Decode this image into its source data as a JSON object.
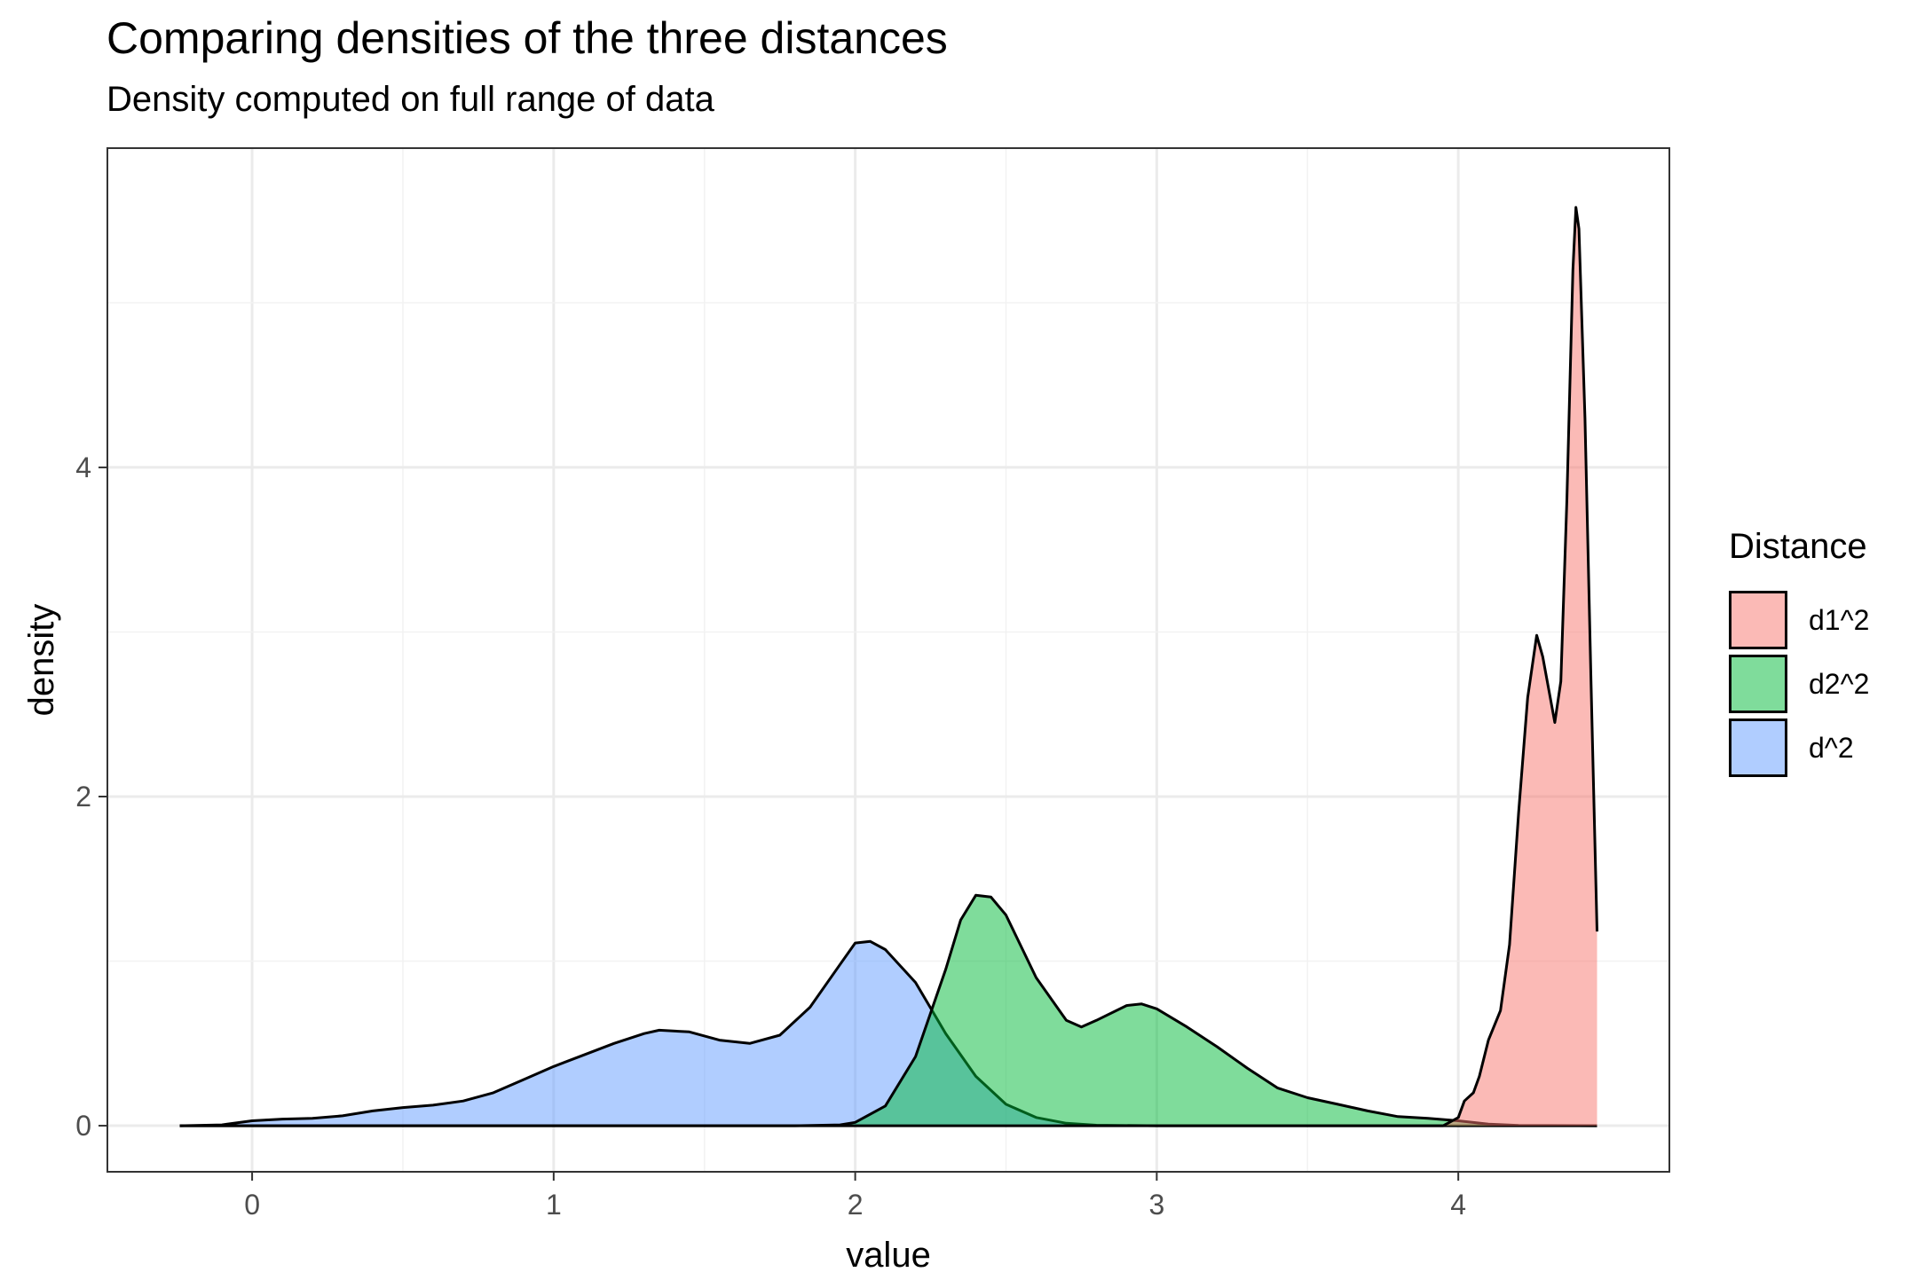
{
  "chart_data": {
    "type": "area",
    "title": "Comparing densities of the three distances",
    "subtitle": "Density computed on full range of data",
    "xlabel": "value",
    "ylabel": "density",
    "xlim": [
      -0.48,
      4.7
    ],
    "ylim": [
      -0.28,
      5.94
    ],
    "x_ticks": [
      0,
      1,
      2,
      3,
      4
    ],
    "y_ticks": [
      0,
      2,
      4
    ],
    "grid": true,
    "legend": {
      "title": "Distance",
      "position": "right"
    },
    "series": [
      {
        "name": "d^2",
        "color": "#619CFF",
        "points": [
          [
            -0.24,
            0
          ],
          [
            -0.1,
            0.005
          ],
          [
            0,
            0.03
          ],
          [
            0.1,
            0.04
          ],
          [
            0.2,
            0.045
          ],
          [
            0.3,
            0.06
          ],
          [
            0.4,
            0.09
          ],
          [
            0.5,
            0.11
          ],
          [
            0.6,
            0.125
          ],
          [
            0.7,
            0.15
          ],
          [
            0.8,
            0.2
          ],
          [
            0.9,
            0.28
          ],
          [
            1.0,
            0.36
          ],
          [
            1.1,
            0.43
          ],
          [
            1.2,
            0.5
          ],
          [
            1.3,
            0.56
          ],
          [
            1.35,
            0.58
          ],
          [
            1.45,
            0.57
          ],
          [
            1.55,
            0.52
          ],
          [
            1.65,
            0.5
          ],
          [
            1.75,
            0.55
          ],
          [
            1.85,
            0.72
          ],
          [
            1.95,
            0.98
          ],
          [
            2.0,
            1.11
          ],
          [
            2.05,
            1.12
          ],
          [
            2.1,
            1.07
          ],
          [
            2.2,
            0.87
          ],
          [
            2.3,
            0.56
          ],
          [
            2.4,
            0.3
          ],
          [
            2.5,
            0.13
          ],
          [
            2.6,
            0.05
          ],
          [
            2.7,
            0.015
          ],
          [
            2.8,
            0.003
          ],
          [
            3.0,
            0
          ],
          [
            4.46,
            0
          ]
        ]
      },
      {
        "name": "d2^2",
        "color": "#00BA38",
        "points": [
          [
            -0.24,
            0
          ],
          [
            1.8,
            0
          ],
          [
            1.95,
            0.005
          ],
          [
            2.0,
            0.02
          ],
          [
            2.1,
            0.12
          ],
          [
            2.2,
            0.42
          ],
          [
            2.3,
            0.95
          ],
          [
            2.35,
            1.25
          ],
          [
            2.4,
            1.4
          ],
          [
            2.45,
            1.39
          ],
          [
            2.5,
            1.28
          ],
          [
            2.6,
            0.9
          ],
          [
            2.7,
            0.64
          ],
          [
            2.75,
            0.6
          ],
          [
            2.8,
            0.64
          ],
          [
            2.9,
            0.73
          ],
          [
            2.95,
            0.74
          ],
          [
            3.0,
            0.71
          ],
          [
            3.1,
            0.6
          ],
          [
            3.2,
            0.48
          ],
          [
            3.3,
            0.35
          ],
          [
            3.4,
            0.23
          ],
          [
            3.5,
            0.17
          ],
          [
            3.6,
            0.13
          ],
          [
            3.7,
            0.09
          ],
          [
            3.8,
            0.055
          ],
          [
            3.9,
            0.045
          ],
          [
            4.0,
            0.03
          ],
          [
            4.1,
            0.01
          ],
          [
            4.2,
            0.002
          ],
          [
            4.46,
            0
          ]
        ]
      },
      {
        "name": "d1^2",
        "color": "#F8766D",
        "points": [
          [
            -0.24,
            0
          ],
          [
            3.95,
            0
          ],
          [
            4.0,
            0.05
          ],
          [
            4.02,
            0.15
          ],
          [
            4.05,
            0.2
          ],
          [
            4.07,
            0.3
          ],
          [
            4.1,
            0.52
          ],
          [
            4.14,
            0.7
          ],
          [
            4.17,
            1.1
          ],
          [
            4.2,
            1.9
          ],
          [
            4.23,
            2.6
          ],
          [
            4.26,
            2.98
          ],
          [
            4.28,
            2.85
          ],
          [
            4.3,
            2.65
          ],
          [
            4.32,
            2.45
          ],
          [
            4.34,
            2.7
          ],
          [
            4.36,
            3.8
          ],
          [
            4.38,
            5.2
          ],
          [
            4.39,
            5.58
          ],
          [
            4.4,
            5.45
          ],
          [
            4.42,
            4.3
          ],
          [
            4.44,
            2.7
          ],
          [
            4.46,
            1.18
          ]
        ]
      }
    ]
  }
}
